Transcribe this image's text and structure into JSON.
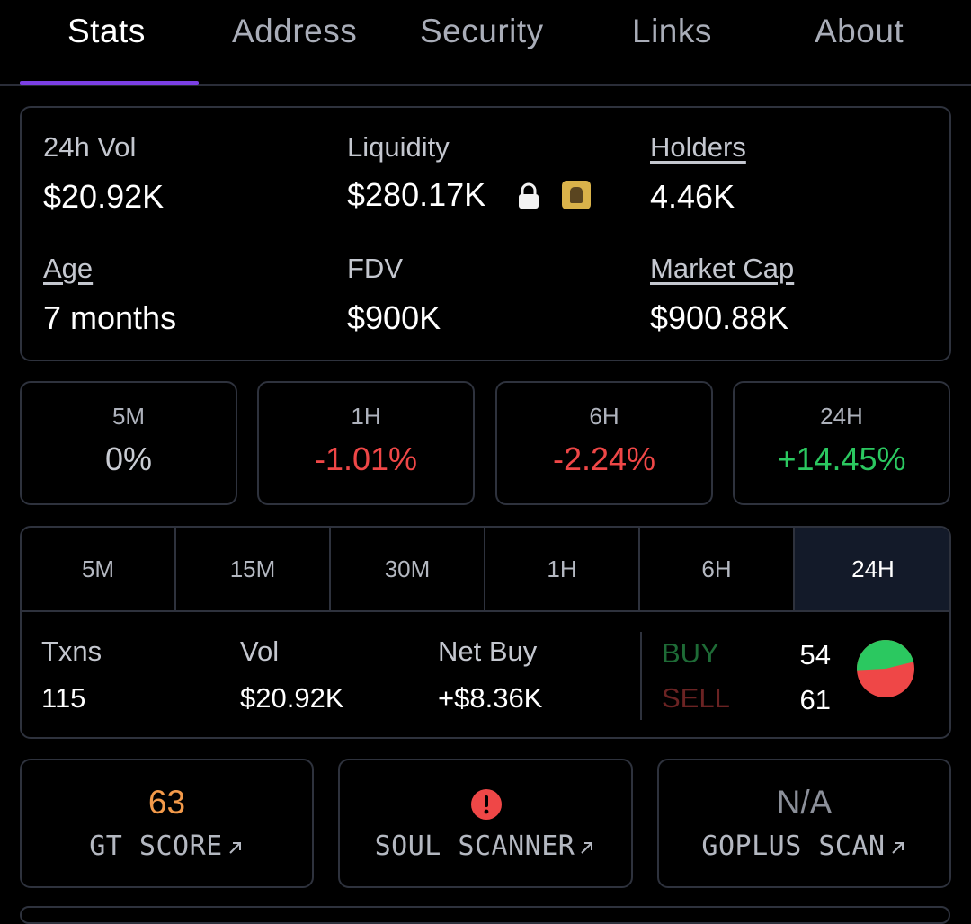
{
  "tabs": [
    {
      "label": "Stats",
      "active": true
    },
    {
      "label": "Address",
      "active": false
    },
    {
      "label": "Security",
      "active": false
    },
    {
      "label": "Links",
      "active": false
    },
    {
      "label": "About",
      "active": false
    }
  ],
  "stats": {
    "vol24h": {
      "label": "24h Vol",
      "value": "$20.92K"
    },
    "liquidity": {
      "label": "Liquidity",
      "value": "$280.17K",
      "icons": [
        "lock-icon",
        "locker-badge-icon"
      ]
    },
    "holders": {
      "label": "Holders",
      "value": "4.46K"
    },
    "age": {
      "label": "Age",
      "value": "7 months"
    },
    "fdv": {
      "label": "FDV",
      "value": "$900K"
    },
    "market_cap": {
      "label": "Market Cap",
      "value": "$900.88K"
    }
  },
  "price_changes": [
    {
      "label": "5M",
      "value": "0%",
      "trend": "neutral"
    },
    {
      "label": "1H",
      "value": "-1.01%",
      "trend": "negative"
    },
    {
      "label": "6H",
      "value": "-2.24%",
      "trend": "negative"
    },
    {
      "label": "24H",
      "value": "+14.45%",
      "trend": "positive"
    }
  ],
  "timeframes": {
    "options": [
      "5M",
      "15M",
      "30M",
      "1H",
      "6H",
      "24H"
    ],
    "selected": "24H"
  },
  "txns": {
    "txns_label": "Txns",
    "txns_value": "115",
    "vol_label": "Vol",
    "vol_value": "$20.92K",
    "netbuy_label": "Net Buy",
    "netbuy_value": "+$8.36K",
    "buy_label": "BUY",
    "buy_count": "54",
    "sell_label": "SELL",
    "sell_count": "61"
  },
  "security": {
    "gt": {
      "top": "63",
      "label": "GT SCORE"
    },
    "soul": {
      "label": "SOUL SCANNER",
      "icon": "alert-icon"
    },
    "goplus": {
      "top": "N/A",
      "label": "GOPLUS SCAN"
    }
  },
  "colors": {
    "accent": "#7b3fe4",
    "positive": "#2bc860",
    "negative": "#ef4747",
    "score": "#f39a4a",
    "buy_pie": "#2bc860",
    "sell_pie": "#ef4747"
  }
}
